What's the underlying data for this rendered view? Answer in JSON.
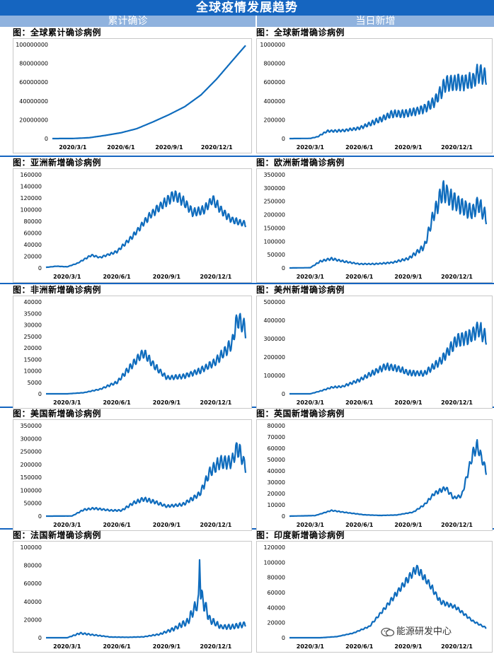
{
  "page": {
    "title": "全球疫情发展趋势",
    "col_left": "累计确诊",
    "col_right": "当日新增",
    "watermark": "能源研发中心"
  },
  "chart_data": [
    {
      "id": "global-cumulative",
      "title": "图：全球累计确诊病例",
      "type": "line",
      "color": "#0f6cbd",
      "x": [
        "2020/1/22",
        "2020/2/15",
        "2020/3/1",
        "2020/4/1",
        "2020/5/1",
        "2020/6/1",
        "2020/7/1",
        "2020/8/1",
        "2020/9/1",
        "2020/10/1",
        "2020/11/1",
        "2020/12/1",
        "2020/12/31",
        "2021/1/25"
      ],
      "y": [
        600,
        70000,
        88000,
        900000,
        3300000,
        6200000,
        10500000,
        17700000,
        25500000,
        34000000,
        46500000,
        63500000,
        83000000,
        99000000
      ],
      "amp": 0,
      "ylim": [
        0,
        100000000
      ],
      "yticks": [
        0,
        20000000,
        40000000,
        60000000,
        80000000,
        100000000
      ],
      "xticks": [
        "2020/3/1",
        "2020/6/1",
        "2020/9/1",
        "2020/12/1"
      ]
    },
    {
      "id": "global-daily",
      "title": "图：全球新增确诊病例",
      "type": "line",
      "color": "#0f6cbd",
      "x": [
        "2020/1/22",
        "2020/3/1",
        "2020/3/15",
        "2020/4/1",
        "2020/5/1",
        "2020/6/1",
        "2020/7/1",
        "2020/8/1",
        "2020/9/1",
        "2020/10/1",
        "2020/10/20",
        "2020/11/10",
        "2020/12/1",
        "2020/12/31",
        "2021/1/10",
        "2021/1/25"
      ],
      "y": [
        0,
        2000,
        20000,
        78000,
        85000,
        110000,
        180000,
        260000,
        270000,
        320000,
        390000,
        580000,
        600000,
        610000,
        700000,
        650000
      ],
      "amp": 0.14,
      "ylim": [
        0,
        1000000
      ],
      "yticks": [
        0,
        200000,
        400000,
        600000,
        800000,
        1000000
      ],
      "xticks": [
        "2020/3/1",
        "2020/6/1",
        "2020/9/1",
        "2020/12/1"
      ]
    },
    {
      "id": "asia-daily",
      "title": "图：亚洲新增确诊病例",
      "type": "line",
      "color": "#0f6cbd",
      "x": [
        "2020/1/22",
        "2020/2/10",
        "2020/3/1",
        "2020/3/20",
        "2020/4/15",
        "2020/5/1",
        "2020/6/1",
        "2020/7/1",
        "2020/8/1",
        "2020/9/1",
        "2020/9/15",
        "2020/10/1",
        "2020/10/20",
        "2020/11/10",
        "2020/11/25",
        "2020/12/10",
        "2020/12/31",
        "2021/1/25"
      ],
      "y": [
        1000,
        3000,
        2000,
        8000,
        22000,
        18000,
        28000,
        55000,
        90000,
        115000,
        125000,
        115000,
        95000,
        100000,
        118000,
        100000,
        82000,
        75000
      ],
      "amp": 0.07,
      "ylim": [
        0,
        160000
      ],
      "yticks": [
        0,
        20000,
        40000,
        60000,
        80000,
        100000,
        120000,
        140000,
        160000
      ],
      "xticks": [
        "2020/3/1",
        "2020/6/1",
        "2020/9/1",
        "2020/12/1"
      ]
    },
    {
      "id": "europe-daily",
      "title": "图：欧洲新增确诊病例",
      "type": "line",
      "color": "#0f6cbd",
      "x": [
        "2020/1/22",
        "2020/3/1",
        "2020/3/20",
        "2020/4/10",
        "2020/5/1",
        "2020/6/1",
        "2020/7/1",
        "2020/8/1",
        "2020/9/1",
        "2020/10/1",
        "2020/10/20",
        "2020/11/5",
        "2020/11/20",
        "2020/12/10",
        "2020/12/31",
        "2021/1/10",
        "2021/1/25"
      ],
      "y": [
        0,
        1000,
        25000,
        35000,
        25000,
        15000,
        15000,
        20000,
        35000,
        80000,
        210000,
        290000,
        260000,
        230000,
        210000,
        240000,
        190000
      ],
      "amp": 0.13,
      "ylim": [
        0,
        350000
      ],
      "yticks": [
        0,
        50000,
        100000,
        150000,
        200000,
        250000,
        300000,
        350000
      ],
      "xticks": [
        "2020/3/1",
        "2020/6/1",
        "2020/9/1",
        "2020/12/1"
      ]
    },
    {
      "id": "africa-daily",
      "title": "图：非洲新增确诊病例",
      "type": "line",
      "color": "#0f6cbd",
      "x": [
        "2020/1/22",
        "2020/3/1",
        "2020/4/1",
        "2020/5/1",
        "2020/6/1",
        "2020/7/1",
        "2020/7/20",
        "2020/8/10",
        "2020/9/1",
        "2020/10/1",
        "2020/11/1",
        "2020/12/1",
        "2020/12/31",
        "2021/1/10",
        "2021/1/25"
      ],
      "y": [
        0,
        0,
        500,
        2000,
        5000,
        13000,
        18000,
        12000,
        7000,
        7500,
        10000,
        14000,
        22000,
        33000,
        28000
      ],
      "amp": 0.12,
      "ylim": [
        0,
        40000
      ],
      "yticks": [
        0,
        5000,
        10000,
        15000,
        20000,
        25000,
        30000,
        35000,
        40000
      ],
      "xticks": [
        "2020/3/1",
        "2020/6/1",
        "2020/9/1",
        "2020/12/1"
      ]
    },
    {
      "id": "americas-daily",
      "title": "图：美州新增确诊病例",
      "type": "line",
      "color": "#0f6cbd",
      "x": [
        "2020/1/22",
        "2020/3/1",
        "2020/3/20",
        "2020/4/10",
        "2020/5/1",
        "2020/6/1",
        "2020/7/1",
        "2020/7/20",
        "2020/8/10",
        "2020/9/1",
        "2020/10/1",
        "2020/11/1",
        "2020/12/1",
        "2020/12/31",
        "2021/1/10",
        "2021/1/25"
      ],
      "y": [
        0,
        0,
        15000,
        35000,
        40000,
        75000,
        120000,
        150000,
        140000,
        115000,
        110000,
        180000,
        290000,
        320000,
        360000,
        300000
      ],
      "amp": 0.12,
      "ylim": [
        0,
        500000
      ],
      "yticks": [
        0,
        100000,
        200000,
        300000,
        400000,
        500000
      ],
      "xticks": [
        "2020/3/1",
        "2020/6/1",
        "2020/9/1",
        "2020/12/1"
      ]
    },
    {
      "id": "usa-daily",
      "title": "图：美国新增确诊病例",
      "type": "line",
      "color": "#0f6cbd",
      "x": [
        "2020/1/22",
        "2020/3/10",
        "2020/4/1",
        "2020/4/20",
        "2020/5/20",
        "2020/6/10",
        "2020/7/1",
        "2020/7/20",
        "2020/8/10",
        "2020/9/1",
        "2020/10/1",
        "2020/11/1",
        "2020/11/20",
        "2020/12/10",
        "2020/12/31",
        "2021/1/10",
        "2021/1/25"
      ],
      "y": [
        0,
        500,
        25000,
        30000,
        22000,
        22000,
        50000,
        66000,
        55000,
        38000,
        45000,
        85000,
        170000,
        210000,
        210000,
        270000,
        190000
      ],
      "amp": 0.12,
      "ylim": [
        0,
        350000
      ],
      "yticks": [
        0,
        50000,
        100000,
        150000,
        200000,
        250000,
        300000,
        350000
      ],
      "xticks": [
        "2020/3/1",
        "2020/6/1",
        "2020/9/1",
        "2020/12/1"
      ]
    },
    {
      "id": "uk-daily",
      "title": "图：英国新增确诊病例",
      "type": "line",
      "color": "#0f6cbd",
      "x": [
        "2020/1/22",
        "2020/3/10",
        "2020/4/10",
        "2020/5/10",
        "2020/6/10",
        "2020/7/10",
        "2020/8/10",
        "2020/9/10",
        "2020/10/1",
        "2020/10/20",
        "2020/11/10",
        "2020/11/25",
        "2020/12/10",
        "2020/12/31",
        "2021/1/8",
        "2021/1/25"
      ],
      "y": [
        0,
        500,
        5000,
        3000,
        1200,
        600,
        1000,
        3500,
        10000,
        20000,
        25000,
        16000,
        18000,
        55000,
        62000,
        40000
      ],
      "amp": 0.08,
      "ylim": [
        0,
        80000
      ],
      "yticks": [
        0,
        10000,
        20000,
        30000,
        40000,
        50000,
        60000,
        70000,
        80000
      ],
      "xticks": [
        "2020/3/1",
        "2020/6/1",
        "2020/9/1",
        "2020/12/1"
      ]
    },
    {
      "id": "france-daily",
      "title": "图：法国新增确诊病例",
      "type": "line",
      "color": "#0f6cbd",
      "x": [
        "2020/1/22",
        "2020/3/1",
        "2020/3/25",
        "2020/4/20",
        "2020/5/20",
        "2020/6/20",
        "2020/7/20",
        "2020/8/20",
        "2020/9/15",
        "2020/10/10",
        "2020/10/25",
        "2020/11/5",
        "2020/11/20",
        "2020/12/10",
        "2020/12/31",
        "2021/1/25"
      ],
      "y": [
        0,
        0,
        5000,
        3000,
        800,
        500,
        1000,
        4000,
        10000,
        18000,
        35000,
        45000,
        20000,
        12000,
        12000,
        15000
      ],
      "amp": 0.2,
      "ylim": [
        0,
        100000
      ],
      "yticks": [
        0,
        20000,
        40000,
        60000,
        80000,
        100000
      ],
      "xticks": [
        "2020/3/1",
        "2020/6/1",
        "2020/9/1",
        "2020/12/1"
      ],
      "spike": {
        "x": "2020/11/1",
        "y": 86000
      }
    },
    {
      "id": "india-daily",
      "title": "图：印度新增确诊病例",
      "type": "line",
      "color": "#0f6cbd",
      "x": [
        "2020/1/22",
        "2020/3/20",
        "2020/4/20",
        "2020/5/20",
        "2020/6/20",
        "2020/7/20",
        "2020/8/20",
        "2020/9/16",
        "2020/10/10",
        "2020/10/31",
        "2020/11/30",
        "2020/12/31",
        "2021/1/25"
      ],
      "y": [
        0,
        0,
        1500,
        6000,
        15000,
        40000,
        68000,
        92000,
        72000,
        48000,
        40000,
        22000,
        13000
      ],
      "amp": 0.06,
      "ylim": [
        0,
        120000
      ],
      "yticks": [
        0,
        20000,
        40000,
        60000,
        80000,
        100000,
        120000
      ],
      "xticks": [
        "2020/3/1",
        "2020/6/1",
        "2020/9/1",
        "2020/12/1"
      ]
    }
  ]
}
